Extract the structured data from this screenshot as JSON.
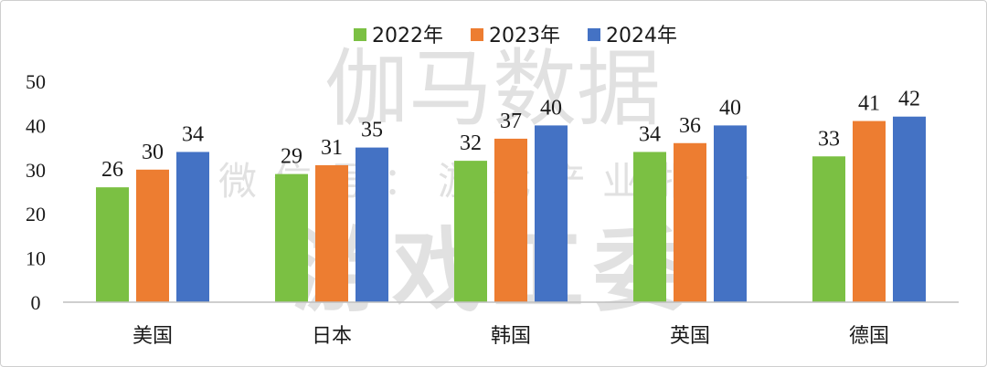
{
  "chart_data": {
    "type": "bar",
    "categories": [
      "美国",
      "日本",
      "韩国",
      "英国",
      "德国"
    ],
    "series": [
      {
        "name": "2022年",
        "values": [
          26,
          29,
          32,
          34,
          33
        ]
      },
      {
        "name": "2023年",
        "values": [
          30,
          31,
          37,
          36,
          41
        ]
      },
      {
        "name": "2024年",
        "values": [
          34,
          35,
          40,
          40,
          42
        ]
      }
    ],
    "ylim": [
      0,
      50
    ],
    "yticks": [
      "0",
      "10",
      "20",
      "30",
      "40",
      "50"
    ],
    "grid": false,
    "legend_position": "top-center",
    "colors": [
      "#7bc043",
      "#ed7d31",
      "#4472c4"
    ]
  },
  "watermark": {
    "line1": "伽马数据",
    "line2": "微信号：游戏产业报告",
    "line3": "游戏工委"
  }
}
